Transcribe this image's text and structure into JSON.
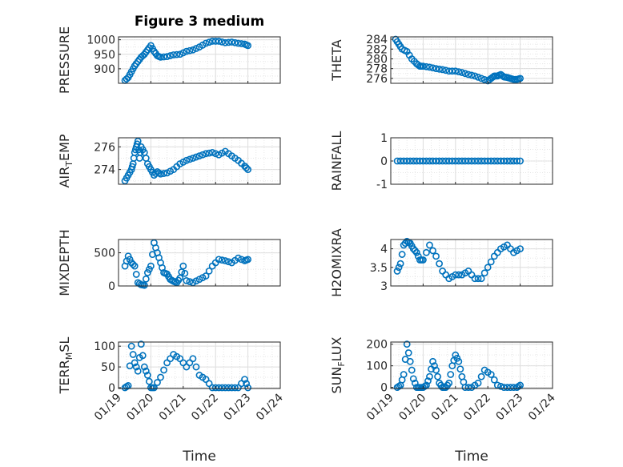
{
  "figure_title": "Figure 3 medium",
  "chart_data": [
    {
      "type": "scatter",
      "title": "Figure 3 medium",
      "ylabel": "PRESSURE",
      "xlabel": "",
      "ylim": [
        850,
        1010
      ],
      "yticks": [
        "900",
        "950",
        "1000"
      ],
      "ytick_values": [
        900,
        950,
        1000
      ],
      "xlim": [
        0,
        5
      ],
      "xticks": [
        "01/19",
        "01/20",
        "01/21",
        "01/22",
        "01/23",
        "01/24"
      ],
      "grid": true,
      "x": [
        0.2,
        0.3,
        0.4,
        0.5,
        0.6,
        0.7,
        0.8,
        0.9,
        1.0,
        1.1,
        1.2,
        1.3,
        1.5,
        1.7,
        1.9,
        2.1,
        2.3,
        2.5,
        2.7,
        2.9,
        3.1,
        3.3,
        3.5,
        3.7,
        3.9,
        4.0
      ],
      "y": [
        860,
        870,
        890,
        910,
        925,
        940,
        950,
        965,
        980,
        960,
        945,
        940,
        942,
        948,
        950,
        960,
        965,
        975,
        988,
        995,
        995,
        990,
        992,
        988,
        985,
        980
      ]
    },
    {
      "type": "scatter",
      "ylabel": "THETA",
      "xlabel": "",
      "ylim": [
        275,
        284.5
      ],
      "yticks": [
        "276",
        "278",
        "280",
        "282",
        "284"
      ],
      "ytick_values": [
        276,
        278,
        280,
        282,
        284
      ],
      "xlim": [
        0,
        5
      ],
      "xticks": [
        "01/19",
        "01/20",
        "01/21",
        "01/22",
        "01/23",
        "01/24"
      ],
      "grid": true,
      "x": [
        0.15,
        0.25,
        0.35,
        0.5,
        0.65,
        0.8,
        0.9,
        1.0,
        1.2,
        1.4,
        1.6,
        1.8,
        2.0,
        2.2,
        2.4,
        2.6,
        2.8,
        3.0,
        3.1,
        3.2,
        3.3,
        3.4,
        3.5,
        3.6,
        3.7,
        3.8,
        3.9,
        4.0
      ],
      "y": [
        284,
        283,
        282,
        281.5,
        280,
        279,
        278.5,
        278.5,
        278.3,
        278,
        277.8,
        277.5,
        277.5,
        277.2,
        276.8,
        276.5,
        276,
        275.5,
        276,
        276.5,
        276.5,
        276.8,
        276.3,
        276.2,
        276,
        275.8,
        275.8,
        276
      ]
    },
    {
      "type": "scatter",
      "ylabel": "AIR_TEMP",
      "ylim": [
        272.7,
        276.8
      ],
      "yticks": [
        "274",
        "276"
      ],
      "ytick_values": [
        274,
        276
      ],
      "xlim": [
        0,
        5
      ],
      "xticks": [
        "01/19",
        "01/20",
        "01/21",
        "01/22",
        "01/23",
        "01/24"
      ],
      "grid": true,
      "x": [
        0.2,
        0.3,
        0.4,
        0.45,
        0.5,
        0.55,
        0.6,
        0.65,
        0.7,
        0.8,
        0.9,
        1.0,
        1.1,
        1.2,
        1.3,
        1.5,
        1.7,
        1.9,
        2.1,
        2.3,
        2.5,
        2.7,
        2.9,
        3.1,
        3.3,
        3.5,
        3.7,
        3.9,
        4.0
      ],
      "y": [
        273,
        273.5,
        274,
        274.5,
        275.5,
        276,
        276.5,
        275,
        276,
        275.5,
        274.5,
        274,
        273.5,
        273.8,
        273.6,
        273.7,
        274,
        274.5,
        274.8,
        275,
        275.2,
        275.4,
        275.5,
        275.3,
        275.6,
        275.2,
        274.8,
        274.3,
        274
      ]
    },
    {
      "type": "scatter",
      "ylabel": "RAINFALL",
      "ylim": [
        -1,
        1
      ],
      "yticks": [
        "-1",
        "0",
        "1"
      ],
      "ytick_values": [
        -1,
        0,
        1
      ],
      "xlim": [
        0,
        5
      ],
      "xticks": [
        "01/19",
        "01/20",
        "01/21",
        "01/22",
        "01/23",
        "01/24"
      ],
      "grid": true,
      "x": [
        0.2,
        0.4,
        0.6,
        0.8,
        1.0,
        1.2,
        1.4,
        1.6,
        1.8,
        2.0,
        2.2,
        2.4,
        2.6,
        2.8,
        3.0,
        3.2,
        3.4,
        3.6,
        3.8,
        4.0
      ],
      "y": [
        0,
        0,
        0,
        0,
        0,
        0,
        0,
        0,
        0,
        0,
        0,
        0,
        0,
        0,
        0,
        0,
        0,
        0,
        0,
        0
      ]
    },
    {
      "type": "scatter",
      "ylabel": "MIXDEPTH",
      "ylim": [
        0,
        700
      ],
      "yticks": [
        "0",
        "500"
      ],
      "ytick_values": [
        0,
        500
      ],
      "xlim": [
        0,
        5
      ],
      "xticks": [
        "01/19",
        "01/20",
        "01/21",
        "01/22",
        "01/23",
        "01/24"
      ],
      "grid": true,
      "x": [
        0.2,
        0.3,
        0.4,
        0.5,
        0.6,
        0.7,
        0.8,
        0.9,
        1.0,
        1.1,
        1.2,
        1.3,
        1.4,
        1.5,
        1.6,
        1.7,
        1.8,
        1.9,
        2.0,
        2.1,
        2.3,
        2.5,
        2.7,
        2.9,
        3.1,
        3.3,
        3.5,
        3.7,
        3.9,
        4.0
      ],
      "y": [
        300,
        450,
        350,
        300,
        50,
        20,
        10,
        200,
        300,
        650,
        500,
        350,
        200,
        180,
        100,
        70,
        50,
        120,
        300,
        80,
        50,
        100,
        150,
        300,
        400,
        380,
        350,
        420,
        380,
        400
      ]
    },
    {
      "type": "scatter",
      "ylabel": "H2OMIXRA",
      "ylim": [
        3,
        4.25
      ],
      "yticks": [
        "3",
        "3.5",
        "4"
      ],
      "ytick_values": [
        3,
        3.5,
        4
      ],
      "xlim": [
        0,
        5
      ],
      "xticks": [
        "01/19",
        "01/20",
        "01/21",
        "01/22",
        "01/23",
        "01/24"
      ],
      "grid": true,
      "x": [
        0.2,
        0.3,
        0.4,
        0.5,
        0.6,
        0.7,
        0.8,
        0.9,
        1.0,
        1.2,
        1.4,
        1.6,
        1.8,
        2.0,
        2.2,
        2.4,
        2.6,
        2.8,
        3.0,
        3.2,
        3.4,
        3.6,
        3.8,
        4.0
      ],
      "y": [
        3.4,
        3.6,
        4.1,
        4.2,
        4.15,
        4.0,
        3.9,
        3.7,
        3.7,
        4.1,
        3.8,
        3.4,
        3.2,
        3.3,
        3.3,
        3.4,
        3.2,
        3.2,
        3.5,
        3.8,
        4.0,
        4.1,
        3.9,
        4.0
      ]
    },
    {
      "type": "scatter",
      "ylabel": "TERR_MSL",
      "ylim": [
        -2,
        110
      ],
      "yticks": [
        "0",
        "50",
        "100"
      ],
      "ytick_values": [
        0,
        50,
        100
      ],
      "xlim": [
        0,
        5
      ],
      "xticks": [
        "01/19",
        "01/20",
        "01/21",
        "01/22",
        "01/23",
        "01/24"
      ],
      "grid": true,
      "x": [
        0.2,
        0.3,
        0.4,
        0.5,
        0.6,
        0.7,
        0.8,
        0.9,
        1.0,
        1.1,
        1.3,
        1.5,
        1.7,
        1.9,
        2.1,
        2.3,
        2.5,
        2.7,
        2.9,
        3.1,
        3.3,
        3.5,
        3.7,
        3.9,
        4.0
      ],
      "y": [
        0,
        5,
        100,
        60,
        40,
        105,
        50,
        30,
        0,
        0,
        25,
        60,
        80,
        70,
        50,
        70,
        30,
        20,
        0,
        0,
        0,
        0,
        0,
        20,
        0
      ]
    },
    {
      "type": "scatter",
      "ylabel": "SUN_FLUX",
      "ylim": [
        -5,
        210
      ],
      "yticks": [
        "0",
        "100",
        "200"
      ],
      "ytick_values": [
        0,
        100,
        200
      ],
      "xlim": [
        0,
        5
      ],
      "xticks": [
        "01/19",
        "01/20",
        "01/21",
        "01/22",
        "01/23",
        "01/24"
      ],
      "grid": true,
      "x": [
        0.2,
        0.3,
        0.4,
        0.5,
        0.6,
        0.7,
        0.8,
        0.9,
        1.0,
        1.1,
        1.2,
        1.3,
        1.4,
        1.5,
        1.6,
        1.7,
        1.8,
        1.9,
        2.0,
        2.1,
        2.2,
        2.3,
        2.5,
        2.7,
        2.9,
        3.1,
        3.3,
        3.5,
        3.7,
        3.9,
        4.0
      ],
      "y": [
        0,
        10,
        60,
        200,
        120,
        40,
        0,
        0,
        0,
        10,
        50,
        120,
        80,
        20,
        0,
        0,
        20,
        100,
        150,
        120,
        50,
        0,
        0,
        20,
        80,
        60,
        10,
        0,
        0,
        0,
        10
      ]
    }
  ],
  "xlabel_bottom": "Time"
}
